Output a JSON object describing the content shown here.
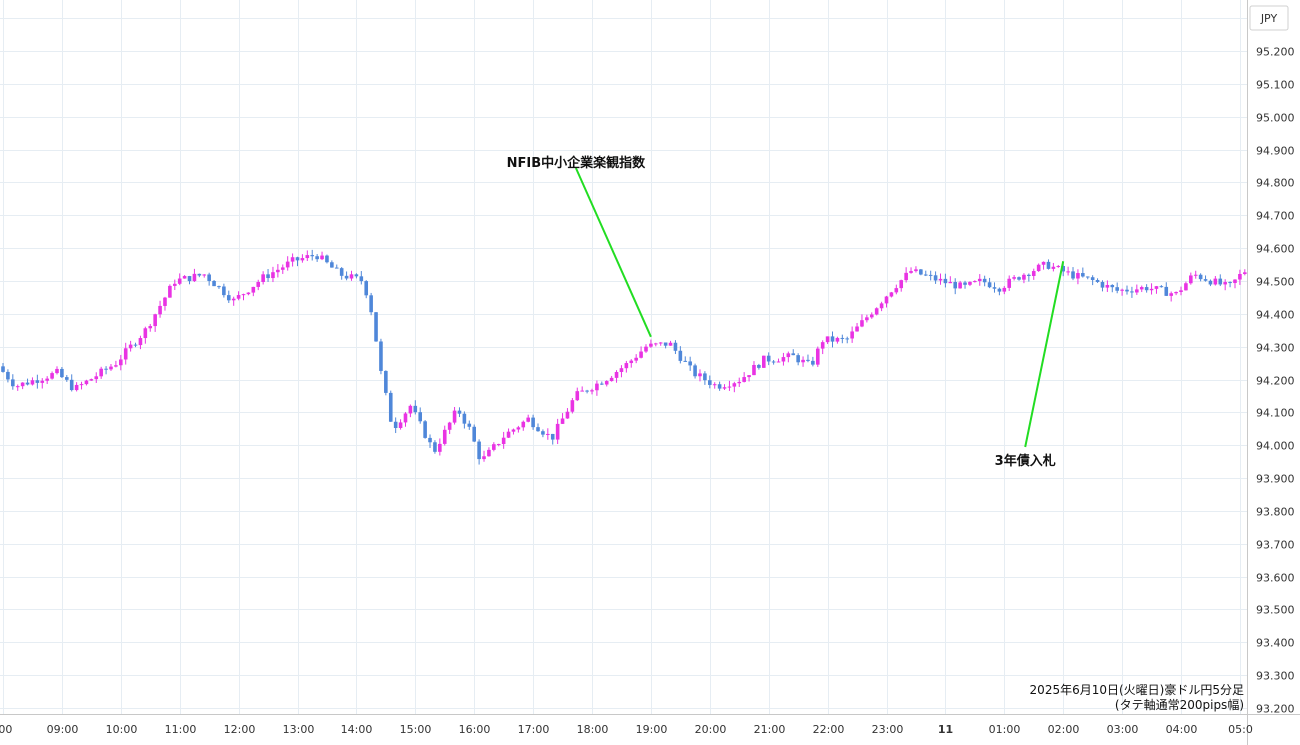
{
  "currency_label": "JPY",
  "footer": {
    "line1": "2025年6月10日(火曜日)豪ドル円5分足",
    "line2": "(タテ軸通常200pips幅)"
  },
  "colors": {
    "up": "#e933e3",
    "down": "#4f87d9",
    "annotation_line": "#22dd22",
    "grid": "#e6edf3"
  },
  "chart_data": {
    "type": "candlestick",
    "timeframe": "5m",
    "title": "",
    "ylim": [
      93.2,
      95.25
    ],
    "y_ticks": [
      "95.200",
      "95.100",
      "95.000",
      "94.900",
      "94.800",
      "94.700",
      "94.600",
      "94.500",
      "94.400",
      "94.300",
      "94.200",
      "94.100",
      "94.000",
      "93.900",
      "93.800",
      "93.700",
      "93.600",
      "93.500",
      "93.400",
      "93.300",
      "93.200"
    ],
    "x_ticks": [
      ":00",
      "09:00",
      "10:00",
      "11:00",
      "12:00",
      "13:00",
      "14:00",
      "15:00",
      "16:00",
      "17:00",
      "18:00",
      "19:00",
      "20:00",
      "21:00",
      "22:00",
      "23:00",
      "11",
      "01:00",
      "02:00",
      "03:00",
      "04:00",
      "05:0"
    ],
    "x_tick_bold": [
      false,
      false,
      false,
      false,
      false,
      false,
      false,
      false,
      false,
      false,
      false,
      false,
      false,
      false,
      false,
      false,
      true,
      false,
      false,
      false,
      false,
      false
    ],
    "annotations": [
      {
        "text": "NFIB中小企業楽観指数",
        "time_hours": 11.0,
        "price": 94.33
      },
      {
        "text": "3年債入札",
        "time_hours": 18.0,
        "price": 94.56
      }
    ],
    "key_prices": [
      {
        "t": 0.0,
        "p": 94.24
      },
      {
        "t": 0.3,
        "p": 94.18
      },
      {
        "t": 1.0,
        "p": 94.22
      },
      {
        "t": 1.3,
        "p": 94.17
      },
      {
        "t": 2.0,
        "p": 94.25
      },
      {
        "t": 2.5,
        "p": 94.35
      },
      {
        "t": 3.0,
        "p": 94.5
      },
      {
        "t": 3.5,
        "p": 94.52
      },
      {
        "t": 4.0,
        "p": 94.44
      },
      {
        "t": 4.5,
        "p": 94.51
      },
      {
        "t": 5.0,
        "p": 94.56
      },
      {
        "t": 5.4,
        "p": 94.58
      },
      {
        "t": 5.8,
        "p": 94.52
      },
      {
        "t": 6.2,
        "p": 94.5
      },
      {
        "t": 6.35,
        "p": 94.4
      },
      {
        "t": 6.5,
        "p": 94.22
      },
      {
        "t": 6.7,
        "p": 94.05
      },
      {
        "t": 7.0,
        "p": 94.12
      },
      {
        "t": 7.4,
        "p": 93.98
      },
      {
        "t": 7.8,
        "p": 94.11
      },
      {
        "t": 8.0,
        "p": 94.05
      },
      {
        "t": 8.2,
        "p": 93.95
      },
      {
        "t": 8.6,
        "p": 94.03
      },
      {
        "t": 9.0,
        "p": 94.08
      },
      {
        "t": 9.4,
        "p": 94.02
      },
      {
        "t": 9.8,
        "p": 94.15
      },
      {
        "t": 10.3,
        "p": 94.2
      },
      {
        "t": 10.7,
        "p": 94.25
      },
      {
        "t": 11.0,
        "p": 94.3
      },
      {
        "t": 11.4,
        "p": 94.31
      },
      {
        "t": 11.8,
        "p": 94.22
      },
      {
        "t": 12.2,
        "p": 94.18
      },
      {
        "t": 12.6,
        "p": 94.2
      },
      {
        "t": 13.0,
        "p": 94.26
      },
      {
        "t": 13.5,
        "p": 94.27
      },
      {
        "t": 13.8,
        "p": 94.24
      },
      {
        "t": 14.0,
        "p": 94.32
      },
      {
        "t": 14.4,
        "p": 94.32
      },
      {
        "t": 14.8,
        "p": 94.4
      },
      {
        "t": 15.2,
        "p": 94.48
      },
      {
        "t": 15.5,
        "p": 94.53
      },
      {
        "t": 16.0,
        "p": 94.5
      },
      {
        "t": 16.4,
        "p": 94.48
      },
      {
        "t": 16.7,
        "p": 94.5
      },
      {
        "t": 17.0,
        "p": 94.48
      },
      {
        "t": 17.4,
        "p": 94.52
      },
      {
        "t": 17.8,
        "p": 94.55
      },
      {
        "t": 18.2,
        "p": 94.52
      },
      {
        "t": 18.6,
        "p": 94.5
      },
      {
        "t": 19.0,
        "p": 94.47
      },
      {
        "t": 19.5,
        "p": 94.48
      },
      {
        "t": 20.0,
        "p": 94.46
      },
      {
        "t": 20.3,
        "p": 94.52
      },
      {
        "t": 20.6,
        "p": 94.5
      },
      {
        "t": 20.9,
        "p": 94.48
      },
      {
        "t": 21.15,
        "p": 94.53
      }
    ]
  }
}
